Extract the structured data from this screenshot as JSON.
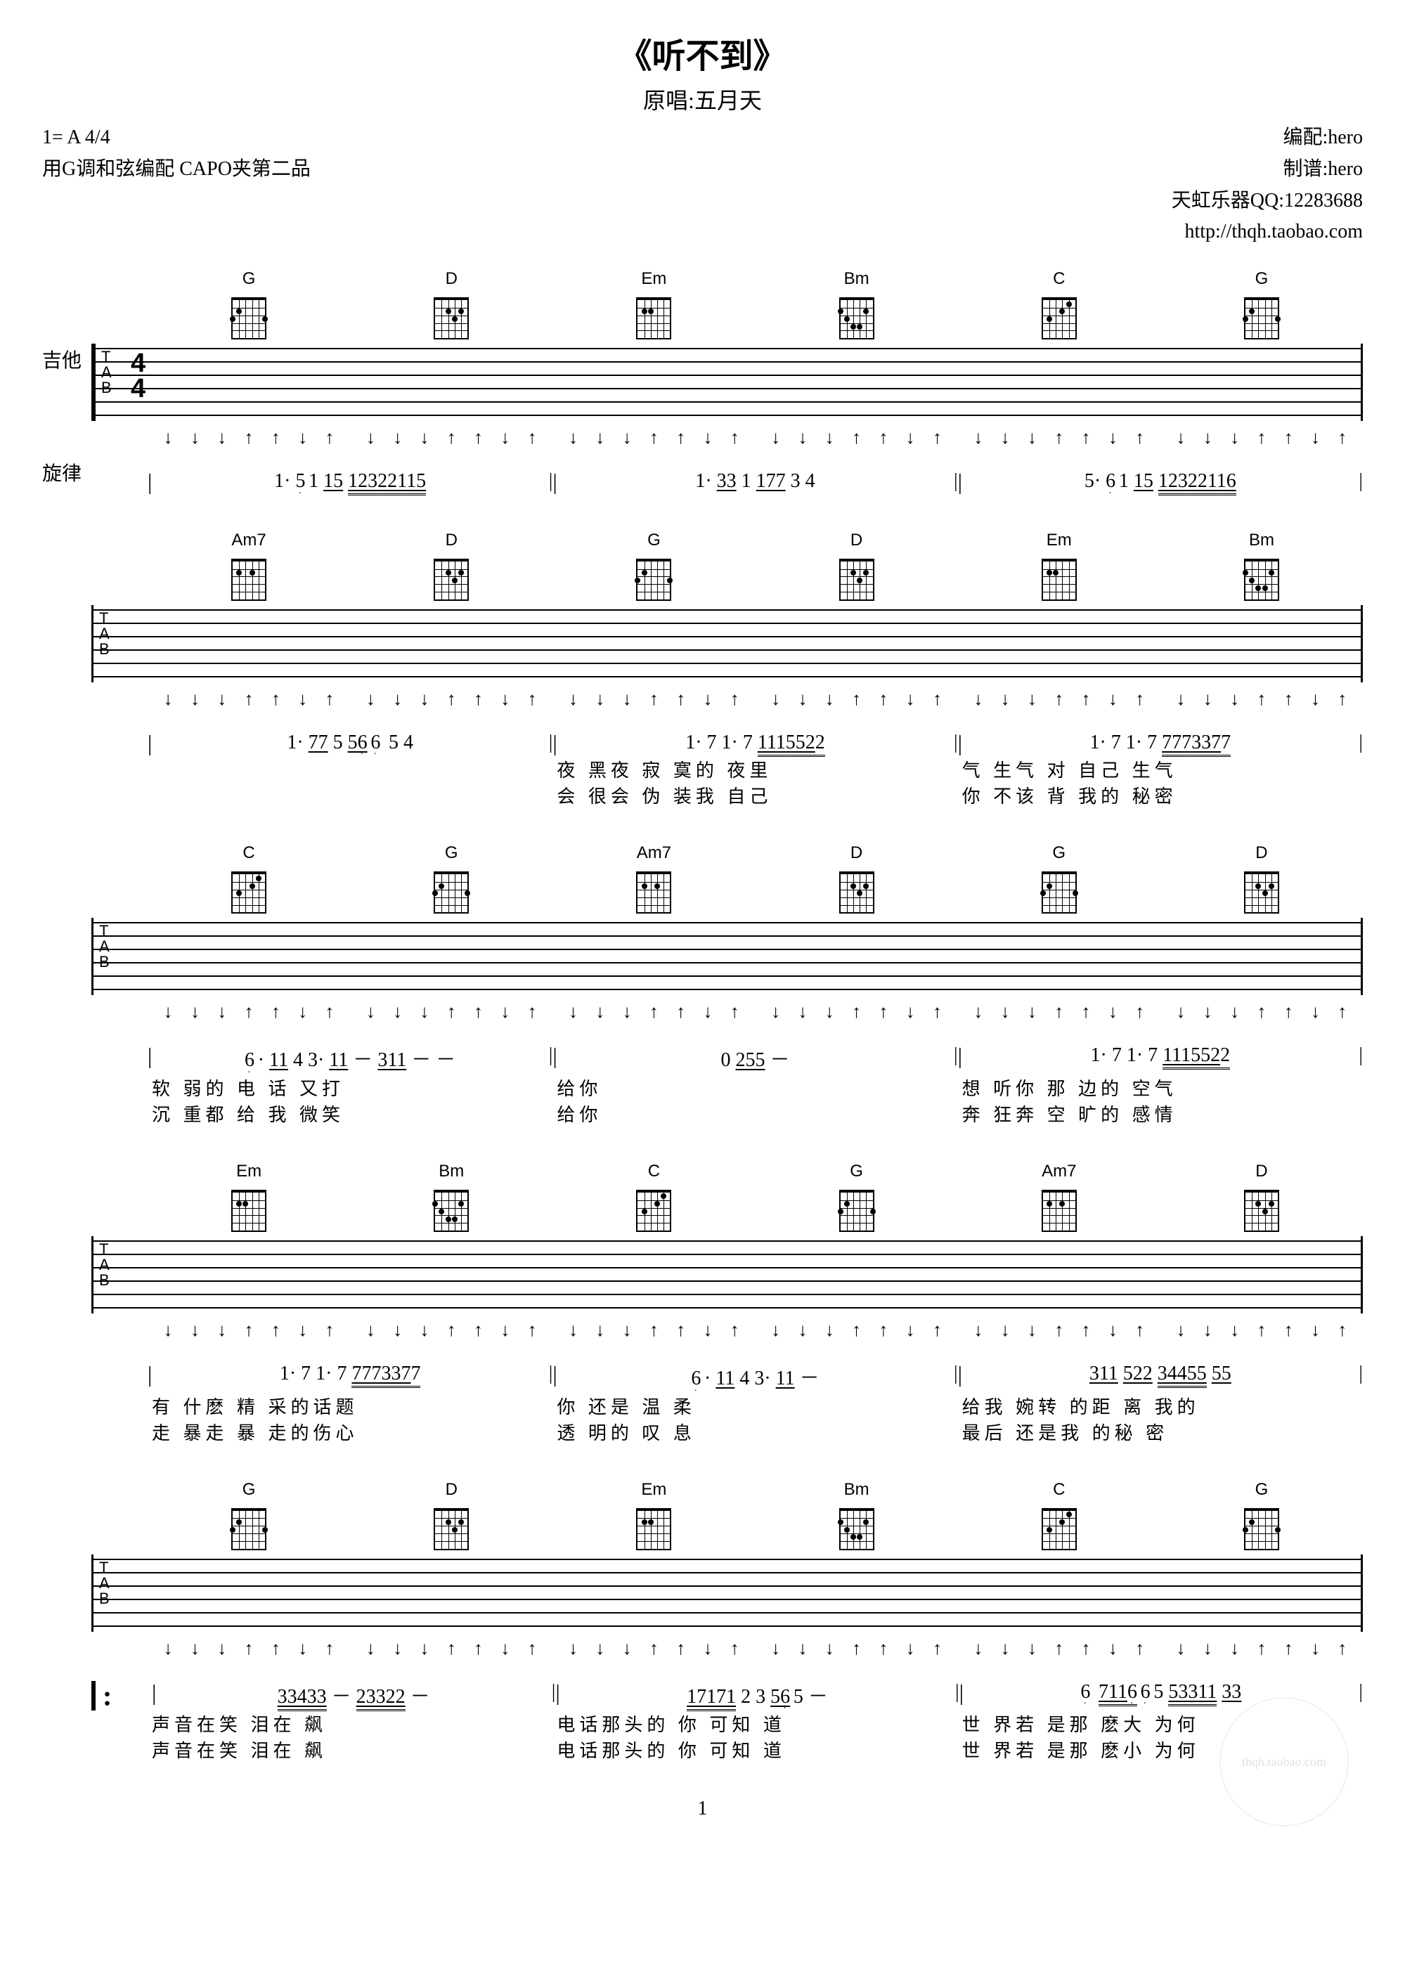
{
  "title": "《听不到》",
  "subtitle": "原唱:五月天",
  "meta_left_1": "1= A  4/4",
  "meta_left_2": "用G调和弦编配 CAPO夹第二品",
  "meta_right_1": "编配:hero",
  "meta_right_2": "制谱:hero",
  "meta_right_3": "天虹乐器QQ:12283688",
  "meta_right_4": "http://thqh.taobao.com",
  "part_guitar": "吉他",
  "part_melody": "旋律",
  "tab_clef": "T\nA\nB",
  "timesig_top": "4",
  "timesig_bot": "4",
  "arrows": {
    "down": "↓",
    "up": "↑"
  },
  "page_number": "1",
  "watermark": "thqh.taobao.com",
  "systems": [
    {
      "chords": [
        "G",
        "D",
        "Em",
        "Bm",
        "C",
        "G"
      ],
      "strum": [
        [
          "↓",
          "↓",
          "↓",
          "↑",
          "↑",
          "↓",
          "↑"
        ],
        [
          "↓",
          "↓",
          "↓",
          "↑",
          "↑",
          "↓",
          "↑"
        ],
        [
          "↓",
          "↓",
          "↓",
          "↑",
          "↑",
          "↓",
          "↑"
        ],
        [
          "↓",
          "↓",
          "↓",
          "↑",
          "↑",
          "↓",
          "↑"
        ],
        [
          "↓",
          "↓",
          "↓",
          "↑",
          "↑",
          "↓",
          "↑"
        ],
        [
          "↓",
          "↓",
          "↓",
          "↑",
          "↑",
          "↓",
          "↑"
        ]
      ],
      "melody": [
        "1· 5̣1 15 12322115",
        "1· 33 1 177 3 4",
        "5· 6̣1 15 12322116"
      ],
      "lyrics1": [
        "",
        "",
        ""
      ],
      "lyrics2": [
        "",
        "",
        ""
      ]
    },
    {
      "chords": [
        "Am7",
        "D",
        "G",
        "D",
        "Em",
        "Bm"
      ],
      "strum": [
        [
          "↓",
          "↓",
          "↓",
          "↑",
          "↑",
          "↓",
          "↑"
        ],
        [
          "↓",
          "↓",
          "↓",
          "↑",
          "↑",
          "↓",
          "↑"
        ],
        [
          "↓",
          "↓",
          "↓",
          "↑",
          "↑",
          "↓",
          "↑"
        ],
        [
          "↓",
          "↓",
          "↓",
          "↑",
          "↑",
          "↓",
          "↑"
        ],
        [
          "↓",
          "↓",
          "↓",
          "↑",
          "↑",
          "↓",
          "↑"
        ],
        [
          "↓",
          "↓",
          "↓",
          "↑",
          "↑",
          "↓",
          "↑"
        ]
      ],
      "melody": [
        "1· 77 5  56̣6̣ 5 4",
        "1·  7 1·  7 1115522",
        "1·  7 1·  7 7773377"
      ],
      "lyrics1": [
        "",
        "夜  黑夜  寂 寞的 夜里",
        "气  生气  对 自己 生气"
      ],
      "lyrics2": [
        "",
        "会  很会  伪 装我 自己",
        "你  不该  背 我的 秘密"
      ]
    },
    {
      "chords": [
        "C",
        "G",
        "Am7",
        "D",
        "G",
        "D"
      ],
      "strum": [
        [
          "↓",
          "↓",
          "↓",
          "↑",
          "↑",
          "↓",
          "↑"
        ],
        [
          "↓",
          "↓",
          "↓",
          "↑",
          "↑",
          "↓",
          "↑"
        ],
        [
          "↓",
          "↓",
          "↓",
          "↑",
          "↑",
          "↓",
          "↑"
        ],
        [
          "↓",
          "↓",
          "↓",
          "↑",
          "↑",
          "↓",
          "↑"
        ],
        [
          "↓",
          "↓",
          "↓",
          "↑",
          "↑",
          "↓",
          "↑"
        ],
        [
          "↓",
          "↓",
          "↓",
          "↑",
          "↑",
          "↓",
          "↑"
        ]
      ],
      "melody": [
        "6̣· 11 4  3· 11 － 311 － －",
        "0 255 －",
        "1·  7 1·  7 1115522"
      ],
      "lyrics1": [
        "软 弱的  电 话     又打",
        "   给你",
        "想  听你  那 边的 空气"
      ],
      "lyrics2": [
        "沉 重都  给 我     微笑",
        "   给你",
        "奔  狂奔  空 旷的 感情"
      ]
    },
    {
      "chords": [
        "Em",
        "Bm",
        "C",
        "G",
        "Am7",
        "D"
      ],
      "strum": [
        [
          "↓",
          "↓",
          "↓",
          "↑",
          "↑",
          "↓",
          "↑"
        ],
        [
          "↓",
          "↓",
          "↓",
          "↑",
          "↑",
          "↓",
          "↑"
        ],
        [
          "↓",
          "↓",
          "↓",
          "↑",
          "↑",
          "↓",
          "↑"
        ],
        [
          "↓",
          "↓",
          "↓",
          "↑",
          "↑",
          "↓",
          "↑"
        ],
        [
          "↓",
          "↓",
          "↓",
          "↑",
          "↑",
          "↓",
          "↑"
        ],
        [
          "↓",
          "↓",
          "↓",
          "↑",
          "↑",
          "↓",
          "↑"
        ]
      ],
      "melody": [
        "1·  7 1·  7 7773377",
        "6̣· 11 4   3· 11 －",
        "311 522   34455 55"
      ],
      "lyrics1": [
        "有  什麽  精 采的话题",
        "你 还是   温 柔",
        "给我 婉转  的距 离 我的"
      ],
      "lyrics2": [
        "走  暴走  暴 走的伤心",
        "透 明的   叹 息",
        "最后 还是我 的秘 密"
      ]
    },
    {
      "chords": [
        "G",
        "D",
        "Em",
        "Bm",
        "C",
        "G"
      ],
      "strum": [
        [
          "↓",
          "↓",
          "↓",
          "↑",
          "↑",
          "↓",
          "↑"
        ],
        [
          "↓",
          "↓",
          "↓",
          "↑",
          "↑",
          "↓",
          "↑"
        ],
        [
          "↓",
          "↓",
          "↓",
          "↑",
          "↑",
          "↓",
          "↑"
        ],
        [
          "↓",
          "↓",
          "↓",
          "↑",
          "↑",
          "↓",
          "↑"
        ],
        [
          "↓",
          "↓",
          "↓",
          "↑",
          "↑",
          "↓",
          "↑"
        ],
        [
          "↓",
          "↓",
          "↓",
          "↑",
          "↑",
          "↓",
          "↑"
        ]
      ],
      "melody": [
        "33433 －  23322 －",
        "17171 2   3 56̣5 －",
        "6̣ 7116̣6̣5 53311 33"
      ],
      "lyrics1": [
        "声音在笑    泪在 飙",
        "电话那头的 你 可知 道",
        "世 界若 是那 麽大 为何"
      ],
      "lyrics2": [
        "声音在笑    泪在 飙",
        "电话那头的 你 可知 道",
        "世 界若 是那 麽小 为何"
      ],
      "repeat_start": true
    }
  ],
  "chord_shapes": {
    "G": {
      "dots": [
        [
          0,
          2
        ],
        [
          1,
          1
        ],
        [
          5,
          2
        ]
      ]
    },
    "D": {
      "dots": [
        [
          2,
          1
        ],
        [
          3,
          2
        ],
        [
          4,
          1
        ]
      ]
    },
    "Em": {
      "dots": [
        [
          1,
          1
        ],
        [
          2,
          1
        ]
      ]
    },
    "Bm": {
      "dots": [
        [
          0,
          1
        ],
        [
          1,
          2
        ],
        [
          2,
          3
        ],
        [
          3,
          3
        ],
        [
          4,
          1
        ]
      ]
    },
    "C": {
      "dots": [
        [
          1,
          2
        ],
        [
          3,
          1
        ],
        [
          4,
          0
        ]
      ]
    },
    "Am7": {
      "dots": [
        [
          1,
          1
        ],
        [
          3,
          1
        ]
      ]
    }
  }
}
